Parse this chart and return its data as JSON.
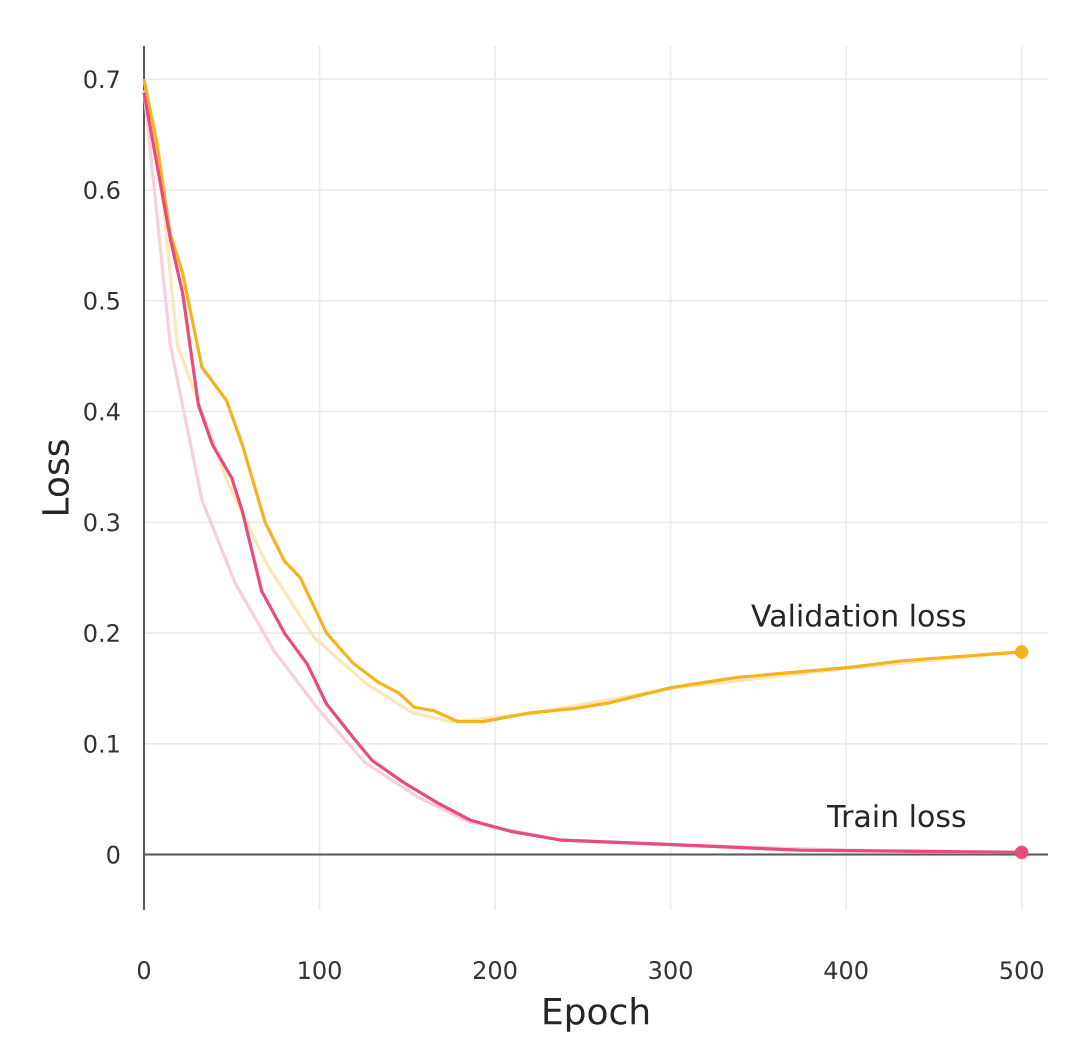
{
  "chart_data": {
    "type": "line",
    "xlabel": "Epoch",
    "ylabel": "Loss",
    "xlim": [
      0,
      515
    ],
    "ylim": [
      -0.05,
      0.73
    ],
    "xticks": [
      0,
      100,
      200,
      300,
      400,
      500
    ],
    "yticks": [
      0,
      0.1,
      0.2,
      0.3,
      0.4,
      0.5,
      0.6,
      0.7
    ],
    "grid": true,
    "series": [
      {
        "color": "#fde6b8",
        "x": [
          0,
          7.5,
          19,
          48,
          70,
          97,
          126,
          153,
          175,
          220,
          300,
          400,
          500
        ],
        "values": [
          0.7,
          0.645,
          0.46,
          0.335,
          0.262,
          0.196,
          0.155,
          0.128,
          0.12,
          0.127,
          0.15,
          0.168,
          0.183
        ]
      },
      {
        "color": "#f9cfdc",
        "x": [
          0,
          15,
          33,
          52,
          74,
          100,
          126,
          156,
          186,
          238,
          300,
          400,
          500
        ],
        "values": [
          0.69,
          0.46,
          0.32,
          0.245,
          0.184,
          0.13,
          0.083,
          0.052,
          0.029,
          0.013,
          0.009,
          0.004,
          0.002
        ]
      },
      {
        "name": "Validation loss",
        "color": "#f5b31d",
        "x": [
          0,
          7.5,
          15,
          22,
          33,
          47,
          56,
          69,
          80,
          89,
          104,
          119,
          134,
          145,
          154,
          165,
          179,
          193,
          220,
          246,
          265,
          301,
          338,
          402,
          432,
          500
        ],
        "values": [
          0.7,
          0.64,
          0.56,
          0.525,
          0.44,
          0.41,
          0.37,
          0.3,
          0.265,
          0.25,
          0.2,
          0.173,
          0.155,
          0.146,
          0.133,
          0.13,
          0.12,
          0.12,
          0.128,
          0.132,
          0.137,
          0.151,
          0.16,
          0.169,
          0.175,
          0.183
        ]
      },
      {
        "name": "Train loss",
        "color": "#e94b7b",
        "x": [
          0,
          15,
          22,
          31,
          39,
          50,
          56,
          67,
          80,
          93,
          104,
          119,
          130,
          148,
          167,
          186,
          209,
          238,
          301,
          373,
          500
        ],
        "values": [
          0.688,
          0.556,
          0.507,
          0.406,
          0.37,
          0.34,
          0.31,
          0.238,
          0.2,
          0.172,
          0.136,
          0.106,
          0.085,
          0.065,
          0.047,
          0.031,
          0.021,
          0.013,
          0.009,
          0.004,
          0.002
        ]
      },
      {
        "type": "scatter",
        "color": "#f5b31d",
        "x": [
          500
        ],
        "values": [
          0.183
        ]
      },
      {
        "type": "scatter",
        "color": "#e94b7b",
        "x": [
          500
        ],
        "values": [
          0.002
        ]
      }
    ]
  }
}
